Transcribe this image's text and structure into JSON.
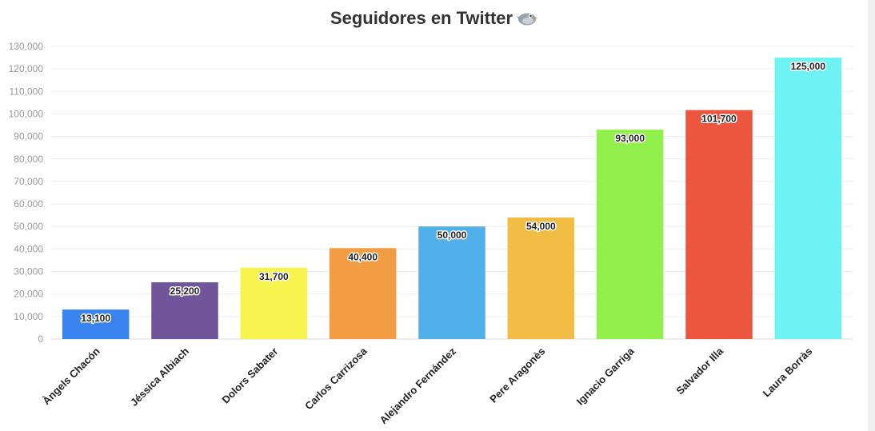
{
  "chart_data": {
    "type": "bar",
    "title": "Seguidores en Twitter",
    "title_icon": "bird-icon",
    "categories": [
      "Àngels Chacón",
      "Jéssica Albiach",
      "Dolors Sabater",
      "Carlos Carrizosa",
      "Alejandro Fernández",
      "Pere Aragonès",
      "Ignacio Garriga",
      "Salvador Illa",
      "Laura Borràs"
    ],
    "values": [
      13100,
      25200,
      31700,
      40400,
      50000,
      54000,
      93000,
      101700,
      125000
    ],
    "value_labels": [
      "13,100",
      "25,200",
      "31,700",
      "40,400",
      "50,000",
      "54,000",
      "93,000",
      "101,700",
      "125,000"
    ],
    "colors": [
      "#3a84f0",
      "#70559b",
      "#f7f44f",
      "#f29c43",
      "#51b0e9",
      "#f1bd45",
      "#92f04c",
      "#ec563e",
      "#6ef2f2"
    ],
    "ylim": [
      0,
      130000
    ],
    "yticks": [
      0,
      10000,
      20000,
      30000,
      40000,
      50000,
      60000,
      70000,
      80000,
      90000,
      100000,
      110000,
      120000,
      130000
    ],
    "ytick_labels": [
      "0",
      "10,000",
      "20,000",
      "30,000",
      "40,000",
      "50,000",
      "60,000",
      "70,000",
      "80,000",
      "90,000",
      "100,000",
      "110,000",
      "120,000",
      "130,000"
    ],
    "xlabel": "",
    "ylabel": "",
    "grid": true,
    "legend": "none"
  }
}
